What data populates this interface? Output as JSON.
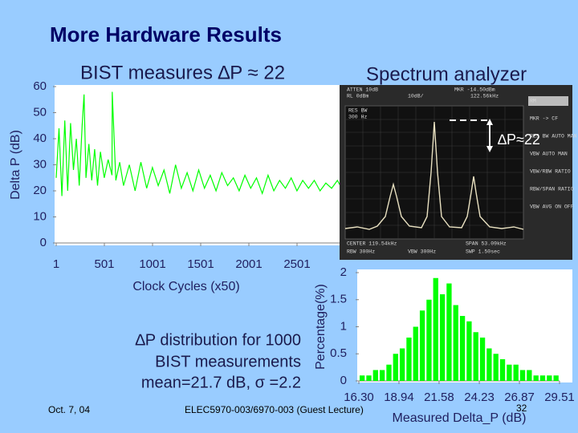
{
  "slide": {
    "title": "More Hardware Results",
    "left_heading": "BIST measures ∆P ≈ 22",
    "right_heading": "Spectrum analyzer",
    "caption": [
      "∆P distribution for 1000",
      "BIST measurements",
      "mean=21.7 dB, σ =2.2"
    ],
    "date": "Oct. 7, 04",
    "course": "ELEC5970-003/6970-003 (Guest Lecture)",
    "page_number": "32"
  },
  "spectrum": {
    "annotation": "∆P≈22",
    "header": [
      "ATTEN 10dB",
      "RL 0dBm",
      "10dB/",
      "MKR -14.50dBm",
      "122.56kHz"
    ],
    "res_bw": [
      "RES BW",
      "300 Hz"
    ],
    "footer": [
      "CENTER 119.54kHz",
      "SPAN 53.09kHz",
      "RBW 300Hz",
      "VBW 300Hz",
      "SWP 1.50sec"
    ],
    "menu": [
      "RM",
      "MKR -> CF",
      "RES BW AUTO MAN",
      "VBW AUTO MAN",
      "VBW/RBW RATIO",
      "RBW/SPAN RATIO",
      "VBW AVG ON OFF"
    ]
  },
  "chart_data": [
    {
      "type": "line",
      "x_label": "Clock Cycles (x50)",
      "y_label": "Delta P (dB)",
      "color": "#00ff00",
      "x": [
        1,
        30,
        60,
        90,
        120,
        150,
        180,
        210,
        240,
        270,
        290,
        310,
        340,
        370,
        400,
        430,
        460,
        500,
        540,
        580,
        583,
        620,
        660,
        700,
        760,
        820,
        880,
        940,
        1000,
        1060,
        1120,
        1180,
        1240,
        1300,
        1360,
        1420,
        1480,
        1540,
        1600,
        1660,
        1720,
        1780,
        1840,
        1900,
        1960,
        2020,
        2080,
        2140,
        2200,
        2260,
        2320,
        2380,
        2440,
        2500,
        2560,
        2620,
        2680,
        2740,
        2800,
        2860,
        2920,
        2980
      ],
      "values": [
        25,
        44,
        18,
        47,
        20,
        46,
        28,
        40,
        22,
        45,
        57,
        25,
        38,
        24,
        36,
        22,
        35,
        25,
        32,
        26,
        58,
        24,
        31,
        22,
        30,
        20,
        31,
        21,
        29,
        22,
        28,
        19,
        30,
        21,
        27,
        20,
        28,
        21,
        26,
        20,
        27,
        22,
        25,
        20,
        26,
        21,
        25,
        19,
        26,
        20,
        24,
        21,
        25,
        20,
        24,
        21,
        24,
        20,
        23,
        21,
        24,
        20
      ],
      "xlim": [
        1,
        3001
      ],
      "xticks": [
        1,
        501,
        1001,
        1501,
        2001,
        2501
      ],
      "ylim": [
        0,
        60
      ],
      "yticks": [
        0,
        10,
        20,
        30,
        40,
        50,
        60
      ]
    },
    {
      "type": "histogram",
      "x_label": "Measured Delta_P (dB)",
      "y_label": "Percentage(%)",
      "color": "#00ff00",
      "bins": [
        16.3,
        16.74,
        17.18,
        17.62,
        18.06,
        18.5,
        18.94,
        19.38,
        19.82,
        20.26,
        20.7,
        21.14,
        21.58,
        22.02,
        22.46,
        22.9,
        23.34,
        23.78,
        24.22,
        24.66,
        25.1,
        25.54,
        25.98,
        26.42,
        26.86,
        27.3,
        27.74,
        28.18,
        28.62,
        29.06,
        29.5
      ],
      "values": [
        0.1,
        0.1,
        0.2,
        0.2,
        0.3,
        0.5,
        0.6,
        0.8,
        1.0,
        1.3,
        1.5,
        1.9,
        1.6,
        1.8,
        1.4,
        1.2,
        1.1,
        0.9,
        0.8,
        0.6,
        0.5,
        0.4,
        0.3,
        0.3,
        0.2,
        0.2,
        0.1,
        0.1,
        0.1,
        0.1
      ],
      "xlim": [
        16.3,
        29.51
      ],
      "xticks": [
        {
          "value": 16.3,
          "label": "16.30"
        },
        18.94,
        21.58,
        24.23,
        26.87,
        29.51
      ],
      "ylim": [
        0,
        2
      ],
      "yticks": [
        0,
        0.5,
        1,
        1.5,
        2
      ]
    }
  ]
}
